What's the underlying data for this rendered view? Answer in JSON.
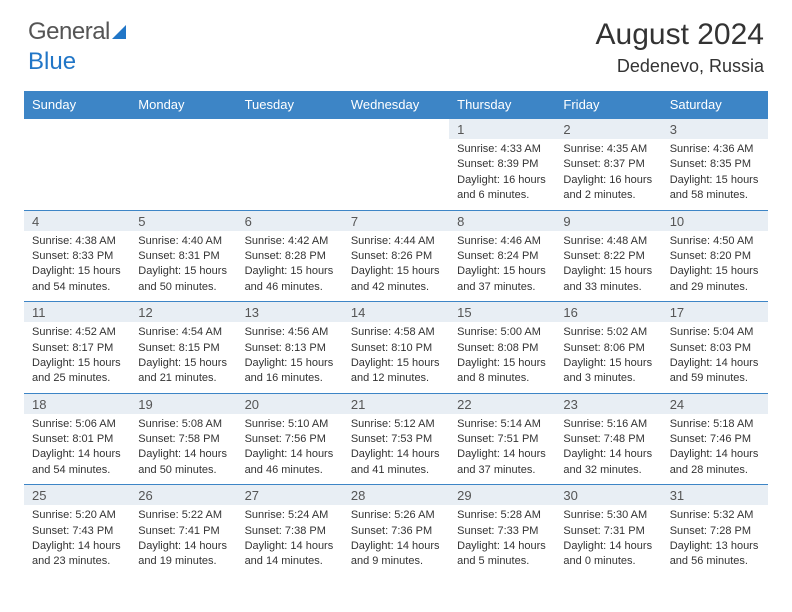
{
  "logo": {
    "text1": "General",
    "text2": "Blue"
  },
  "title": "August 2024",
  "subtitle": "Dedenevo, Russia",
  "dayNames": [
    "Sunday",
    "Monday",
    "Tuesday",
    "Wednesday",
    "Thursday",
    "Friday",
    "Saturday"
  ],
  "colors": {
    "headerBg": "#3d85c6",
    "numRowBg": "#e8eef4",
    "accent": "#2176c7"
  },
  "firstWeekday": 4,
  "daysInMonth": 31,
  "days": {
    "1": {
      "sunrise": "4:33 AM",
      "sunset": "8:39 PM",
      "daylight": "16 hours and 6 minutes."
    },
    "2": {
      "sunrise": "4:35 AM",
      "sunset": "8:37 PM",
      "daylight": "16 hours and 2 minutes."
    },
    "3": {
      "sunrise": "4:36 AM",
      "sunset": "8:35 PM",
      "daylight": "15 hours and 58 minutes."
    },
    "4": {
      "sunrise": "4:38 AM",
      "sunset": "8:33 PM",
      "daylight": "15 hours and 54 minutes."
    },
    "5": {
      "sunrise": "4:40 AM",
      "sunset": "8:31 PM",
      "daylight": "15 hours and 50 minutes."
    },
    "6": {
      "sunrise": "4:42 AM",
      "sunset": "8:28 PM",
      "daylight": "15 hours and 46 minutes."
    },
    "7": {
      "sunrise": "4:44 AM",
      "sunset": "8:26 PM",
      "daylight": "15 hours and 42 minutes."
    },
    "8": {
      "sunrise": "4:46 AM",
      "sunset": "8:24 PM",
      "daylight": "15 hours and 37 minutes."
    },
    "9": {
      "sunrise": "4:48 AM",
      "sunset": "8:22 PM",
      "daylight": "15 hours and 33 minutes."
    },
    "10": {
      "sunrise": "4:50 AM",
      "sunset": "8:20 PM",
      "daylight": "15 hours and 29 minutes."
    },
    "11": {
      "sunrise": "4:52 AM",
      "sunset": "8:17 PM",
      "daylight": "15 hours and 25 minutes."
    },
    "12": {
      "sunrise": "4:54 AM",
      "sunset": "8:15 PM",
      "daylight": "15 hours and 21 minutes."
    },
    "13": {
      "sunrise": "4:56 AM",
      "sunset": "8:13 PM",
      "daylight": "15 hours and 16 minutes."
    },
    "14": {
      "sunrise": "4:58 AM",
      "sunset": "8:10 PM",
      "daylight": "15 hours and 12 minutes."
    },
    "15": {
      "sunrise": "5:00 AM",
      "sunset": "8:08 PM",
      "daylight": "15 hours and 8 minutes."
    },
    "16": {
      "sunrise": "5:02 AM",
      "sunset": "8:06 PM",
      "daylight": "15 hours and 3 minutes."
    },
    "17": {
      "sunrise": "5:04 AM",
      "sunset": "8:03 PM",
      "daylight": "14 hours and 59 minutes."
    },
    "18": {
      "sunrise": "5:06 AM",
      "sunset": "8:01 PM",
      "daylight": "14 hours and 54 minutes."
    },
    "19": {
      "sunrise": "5:08 AM",
      "sunset": "7:58 PM",
      "daylight": "14 hours and 50 minutes."
    },
    "20": {
      "sunrise": "5:10 AM",
      "sunset": "7:56 PM",
      "daylight": "14 hours and 46 minutes."
    },
    "21": {
      "sunrise": "5:12 AM",
      "sunset": "7:53 PM",
      "daylight": "14 hours and 41 minutes."
    },
    "22": {
      "sunrise": "5:14 AM",
      "sunset": "7:51 PM",
      "daylight": "14 hours and 37 minutes."
    },
    "23": {
      "sunrise": "5:16 AM",
      "sunset": "7:48 PM",
      "daylight": "14 hours and 32 minutes."
    },
    "24": {
      "sunrise": "5:18 AM",
      "sunset": "7:46 PM",
      "daylight": "14 hours and 28 minutes."
    },
    "25": {
      "sunrise": "5:20 AM",
      "sunset": "7:43 PM",
      "daylight": "14 hours and 23 minutes."
    },
    "26": {
      "sunrise": "5:22 AM",
      "sunset": "7:41 PM",
      "daylight": "14 hours and 19 minutes."
    },
    "27": {
      "sunrise": "5:24 AM",
      "sunset": "7:38 PM",
      "daylight": "14 hours and 14 minutes."
    },
    "28": {
      "sunrise": "5:26 AM",
      "sunset": "7:36 PM",
      "daylight": "14 hours and 9 minutes."
    },
    "29": {
      "sunrise": "5:28 AM",
      "sunset": "7:33 PM",
      "daylight": "14 hours and 5 minutes."
    },
    "30": {
      "sunrise": "5:30 AM",
      "sunset": "7:31 PM",
      "daylight": "14 hours and 0 minutes."
    },
    "31": {
      "sunrise": "5:32 AM",
      "sunset": "7:28 PM",
      "daylight": "13 hours and 56 minutes."
    }
  },
  "labels": {
    "sunrise": "Sunrise:",
    "sunset": "Sunset:",
    "daylight": "Daylight:"
  }
}
